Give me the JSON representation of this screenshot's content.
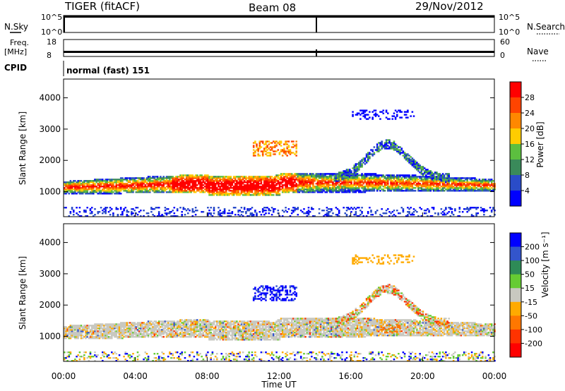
{
  "header": {
    "title": "TIGER (fitACF)",
    "beam": "Beam 08",
    "date": "29/Nov/2012"
  },
  "panels": {
    "nsky": {
      "label": "N.Sky",
      "ticks": [
        "10^5",
        "10^0"
      ],
      "right_label": "N.Search",
      "right_ticks": [
        "10^5",
        "10^0"
      ]
    },
    "freq": {
      "label_line1": "Freq.",
      "label_line2": "[MHz]",
      "ticks": [
        "18",
        "8"
      ],
      "right_label": "Nave",
      "right_ticks": [
        "60",
        "0"
      ]
    },
    "cpid": {
      "label": "CPID",
      "text": "normal (fast) 151"
    }
  },
  "colors": {
    "power": [
      "#0000ff",
      "#2a4cc8",
      "#3a8a5a",
      "#5cbf3f",
      "#ffcc00",
      "#ff8800",
      "#ff4400",
      "#ff0000"
    ],
    "velocity": [
      "#0000ff",
      "#3355cc",
      "#2e8b57",
      "#66cc33",
      "#c8c8c0",
      "#ffaa00",
      "#ff7700",
      "#ff3300",
      "#ff0000"
    ]
  },
  "chart_data": [
    {
      "type": "heatmap",
      "quantity": "power",
      "xlabel": "",
      "ylabel": "Slant Range [km]",
      "xlim": [
        0,
        24
      ],
      "ylim": [
        200,
        4600
      ],
      "yticks": [
        "1000",
        "2000",
        "3000",
        "4000"
      ],
      "colorbar": {
        "label": "Power [dB]",
        "ticks": [
          "4",
          "8",
          "12",
          "16",
          "20",
          "24",
          "28"
        ],
        "range": [
          0,
          32
        ]
      }
    },
    {
      "type": "heatmap",
      "quantity": "velocity",
      "xlabel": "Time UT",
      "ylabel": "Slant Range [km]",
      "xlim": [
        0,
        24
      ],
      "ylim": [
        200,
        4600
      ],
      "xticks": [
        "00:00",
        "04:00",
        "08:00",
        "12:00",
        "16:00",
        "20:00",
        "00:00"
      ],
      "yticks": [
        "1000",
        "2000",
        "3000",
        "4000"
      ],
      "colorbar": {
        "label": "Velocity [m s⁻¹]",
        "ticks": [
          "200",
          "100",
          "50",
          "15",
          "-15",
          "-50",
          "-100",
          "-200"
        ]
      }
    }
  ]
}
